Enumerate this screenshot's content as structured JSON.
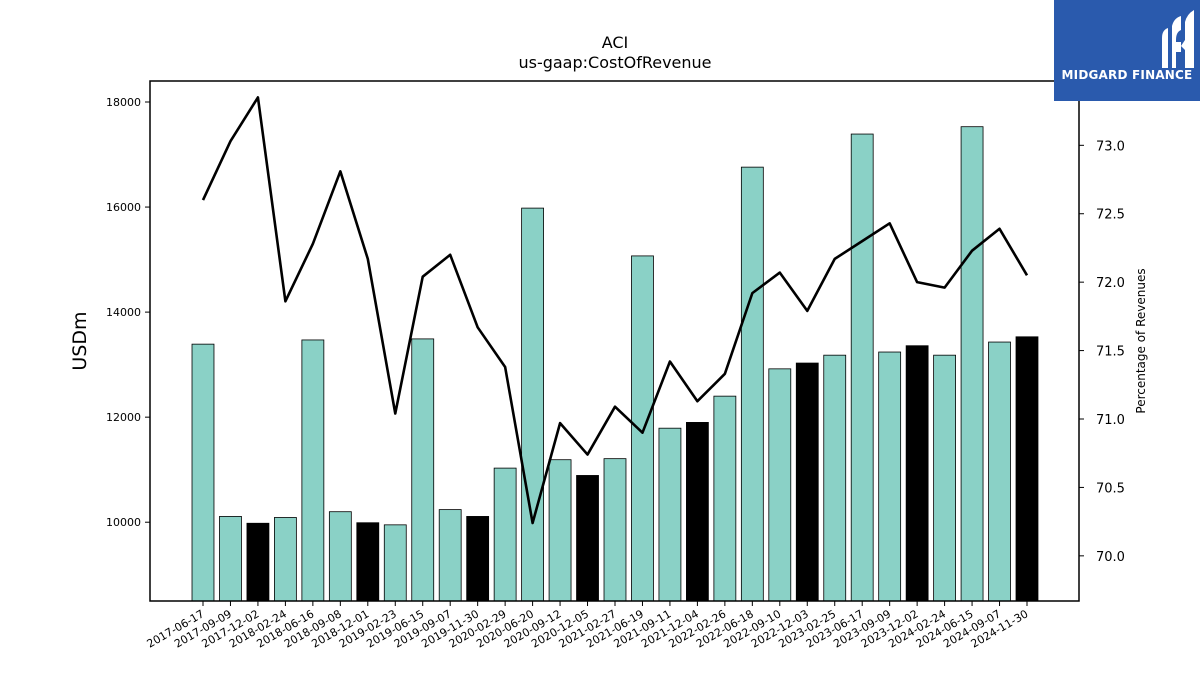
{
  "chart_data": {
    "type": "bar",
    "title": "ACI",
    "subtitle": "us-gaap:CostOfRevenue",
    "ylabel": "USDm",
    "y2label": "Percentage of Revenues",
    "ylim": [
      8500,
      18400
    ],
    "y2lim": [
      69.67,
      73.47
    ],
    "yticks": [
      10000,
      12000,
      14000,
      16000,
      18000
    ],
    "y2ticks": [
      70.0,
      70.5,
      71.0,
      71.5,
      72.0,
      72.5,
      73.0
    ],
    "categories": [
      "2017-06-17",
      "2017-09-09",
      "2017-12-02",
      "2018-02-24",
      "2018-06-16",
      "2018-09-08",
      "2018-12-01",
      "2019-02-23",
      "2019-06-15",
      "2019-09-07",
      "2019-11-30",
      "2020-02-29",
      "2020-06-20",
      "2020-09-12",
      "2020-12-05",
      "2021-02-27",
      "2021-06-19",
      "2021-09-11",
      "2021-12-04",
      "2022-02-26",
      "2022-06-18",
      "2022-09-10",
      "2022-12-03",
      "2023-02-25",
      "2023-06-17",
      "2023-09-09",
      "2023-12-02",
      "2024-02-24",
      "2024-06-15",
      "2024-09-07",
      "2024-11-30"
    ],
    "series": [
      {
        "kind": "bar",
        "values": [
          13390,
          10110,
          9980,
          10090,
          13470,
          10200,
          9990,
          9950,
          13490,
          10240,
          10110,
          11030,
          15980,
          11190,
          10890,
          11210,
          15070,
          11790,
          11900,
          12400,
          16760,
          12920,
          13030,
          13180,
          17390,
          13240,
          13360,
          13180,
          17530,
          13430,
          13530
        ],
        "highlight": [
          false,
          false,
          true,
          false,
          false,
          false,
          true,
          false,
          false,
          false,
          true,
          false,
          false,
          false,
          true,
          false,
          false,
          false,
          true,
          false,
          false,
          false,
          true,
          false,
          false,
          false,
          true,
          false,
          false,
          false,
          true
        ]
      },
      {
        "kind": "line",
        "axis": "right",
        "values": [
          72.6,
          73.03,
          73.35,
          71.86,
          72.28,
          72.81,
          72.17,
          71.04,
          72.04,
          72.2,
          71.67,
          71.38,
          70.24,
          70.97,
          70.74,
          71.09,
          70.9,
          71.42,
          71.13,
          71.33,
          71.92,
          72.07,
          71.79,
          72.17,
          72.3,
          72.43,
          72.0,
          71.96,
          72.23,
          72.39,
          72.05
        ]
      }
    ],
    "colors": {
      "bar": "#8ad1c6",
      "bar_highlight": "#000000",
      "line": "#000000"
    }
  },
  "brand": {
    "name": "MIDGARD FINANCE",
    "icon": "midgard-logo-icon",
    "background": "#2a5aad"
  }
}
